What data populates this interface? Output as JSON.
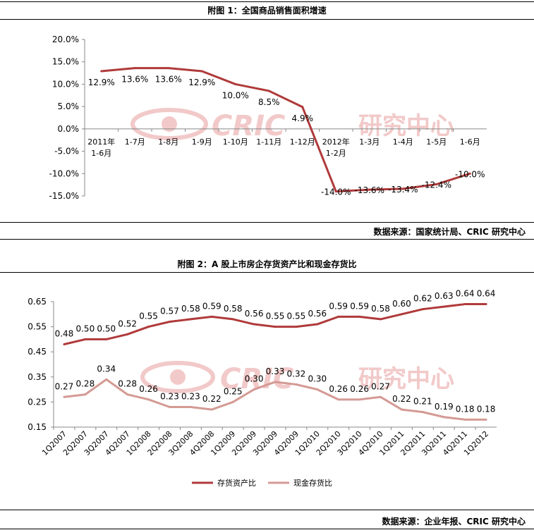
{
  "figure1": {
    "title": "附图 1：全国商品销售面积增速",
    "source": "数据来源：国家统计局、CRIC 研究中心"
  },
  "figure2": {
    "title": "附图 2：A 股上市房企存货资产比和现金存货比",
    "source": "数据来源：企业年报、CRIC 研究中心"
  },
  "watermark": {
    "brand": "CRIC",
    "label": "研究中心"
  },
  "colors": {
    "line1": "#b03a3a",
    "line2": "#d49a94",
    "watermark": "#f2c9c9"
  },
  "chart_data": [
    {
      "type": "line",
      "title": "附图 1：全国商品销售面积增速",
      "categories": [
        "2011年 1-6月",
        "1-7月",
        "1-8月",
        "1-9月",
        "1-10月",
        "1-11月",
        "1-12月",
        "2012年 1-2月",
        "1-3月",
        "1-4月",
        "1-5月",
        "1-6月"
      ],
      "series": [
        {
          "values": [
            12.9,
            13.6,
            13.6,
            12.9,
            10.0,
            8.5,
            4.9,
            -14.0,
            -13.6,
            -13.4,
            -12.4,
            -10.0
          ]
        }
      ],
      "data_labels": [
        "12.9%",
        "13.6%",
        "13.6%",
        "12.9%",
        "10.0%",
        "8.5%",
        "4.9%",
        "-14.0%",
        "-13.6%",
        "-13.4%",
        "-12.4%",
        "-10.0%"
      ],
      "ylim": [
        -15,
        20
      ],
      "yticks": [
        20,
        15,
        10,
        5,
        0,
        -5,
        -10,
        -15
      ],
      "ytick_labels": [
        "20.0%",
        "15.0%",
        "10.0%",
        "5.0%",
        "0.0%",
        "-5.0%",
        "-10.0%",
        "-15.0%"
      ],
      "grid": false,
      "legend": "none"
    },
    {
      "type": "line",
      "title": "附图 2：A 股上市房企存货资产比和现金存货比",
      "categories": [
        "1Q2007",
        "2Q2007",
        "3Q2007",
        "4Q2007",
        "1Q2008",
        "2Q2008",
        "3Q2008",
        "4Q2008",
        "1Q2009",
        "2Q2009",
        "3Q2009",
        "4Q2009",
        "1Q2010",
        "2Q2010",
        "3Q2010",
        "4Q2010",
        "1Q2011",
        "2Q2011",
        "3Q2011",
        "4Q2011",
        "1Q2012"
      ],
      "series": [
        {
          "name": "存货资产比",
          "values": [
            0.48,
            0.5,
            0.5,
            0.52,
            0.55,
            0.57,
            0.58,
            0.59,
            0.58,
            0.56,
            0.55,
            0.55,
            0.56,
            0.59,
            0.59,
            0.58,
            0.6,
            0.62,
            0.63,
            0.64,
            0.64
          ]
        },
        {
          "name": "现金存货比",
          "values": [
            0.27,
            0.28,
            0.34,
            0.28,
            0.26,
            0.23,
            0.23,
            0.22,
            0.25,
            0.3,
            0.33,
            0.32,
            0.3,
            0.26,
            0.26,
            0.27,
            0.22,
            0.21,
            0.19,
            0.18,
            0.18
          ]
        }
      ],
      "ylim": [
        0.15,
        0.65
      ],
      "yticks": [
        0.65,
        0.55,
        0.45,
        0.35,
        0.25,
        0.15
      ],
      "ytick_labels": [
        "0.65",
        "0.55",
        "0.45",
        "0.35",
        "0.25",
        "0.15"
      ],
      "grid": false,
      "legend": "bottom"
    }
  ]
}
